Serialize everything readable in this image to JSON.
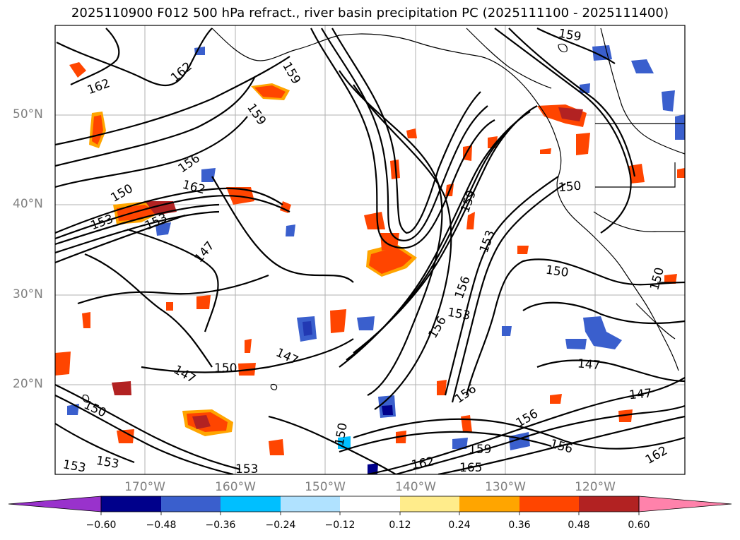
{
  "title": "2025110900 F012 500 hPa refract., river basin precipitation PC (2025111100 - 2025111400)",
  "map": {
    "lat_labels": [
      "50°N",
      "40°N",
      "30°N",
      "20°N"
    ],
    "lon_labels": [
      "170°W",
      "160°W",
      "150°W",
      "140°W",
      "130°W",
      "120°W"
    ],
    "contour_labels": [
      "162",
      "162",
      "159",
      "159",
      "156",
      "162",
      "150",
      "153",
      "153",
      "147",
      "159",
      "153",
      "156",
      "153",
      "156",
      "150",
      "150",
      "150",
      "147",
      "147",
      "150",
      "147",
      "156",
      "156",
      "159",
      "162",
      "165",
      "156",
      "147",
      "162",
      "150",
      "153",
      "153",
      "150",
      "159",
      "153",
      "150",
      "147",
      "150",
      "156",
      "162"
    ],
    "colors": {
      "coastline": "#000000",
      "contour": "#000000",
      "grid": "#b0b0b0"
    }
  },
  "colorbar": {
    "tick_labels": [
      "−0.60",
      "−0.48",
      "−0.36",
      "−0.24",
      "−0.12",
      "0.12",
      "0.24",
      "0.36",
      "0.48",
      "0.60"
    ],
    "colors": [
      "#9932cc",
      "#00008b",
      "#3a5fcd",
      "#00bfff",
      "#b0e2ff",
      "#ffffff",
      "#ffec8b",
      "#ffa500",
      "#ff4500",
      "#b22222",
      "#ff82ab"
    ]
  }
}
